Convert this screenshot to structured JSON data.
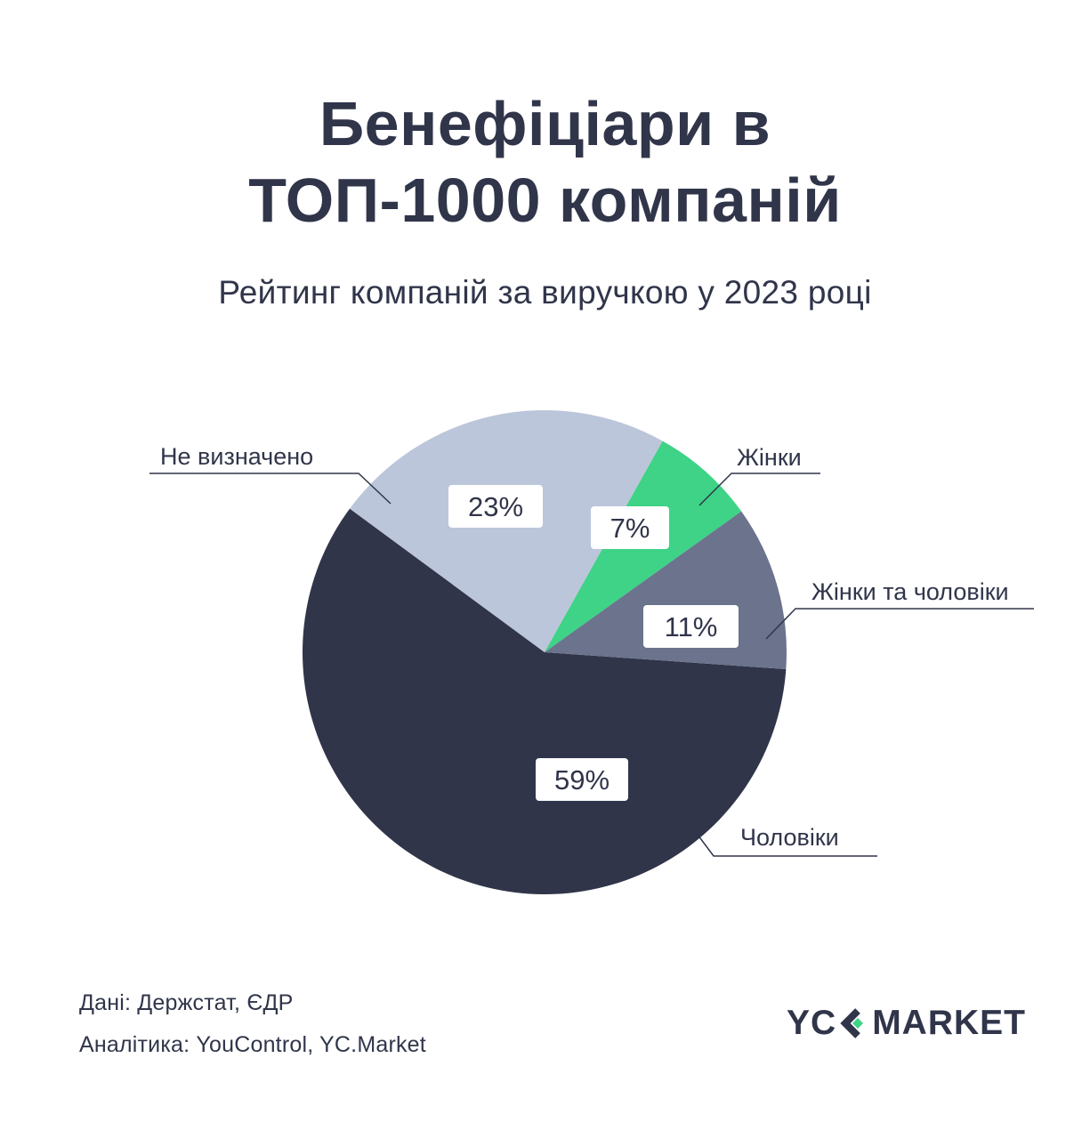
{
  "header": {
    "title_line1": "Бенефіціари в",
    "title_line2": "ТОП-1000 компаній",
    "subtitle": "Рейтинг компаній за виручкою у 2023 році"
  },
  "chart_data": {
    "type": "pie",
    "title": "Бенефіціари в ТОП-1000 компаній",
    "subtitle": "Рейтинг компаній за виручкою у 2023 році",
    "unit": "%",
    "slices": [
      {
        "label": "Чоловіки",
        "value": 59,
        "display": "59%",
        "color": "#30354a"
      },
      {
        "label": "Не визначено",
        "value": 23,
        "display": "23%",
        "color": "#bcc6da"
      },
      {
        "label": "Жінки",
        "value": 7,
        "display": "7%",
        "color": "#3ed386"
      },
      {
        "label": "Жінки та чоловіки",
        "value": 11,
        "display": "11%",
        "color": "#6b738d"
      }
    ]
  },
  "footer": {
    "sources": "Дані: Держстат, ЄДР",
    "analytics": "Аналітика: YouControl, YC.Market"
  },
  "logo": {
    "left": "YC",
    "right": "MARKET",
    "accent_color": "#3ed386"
  },
  "colors": {
    "text": "#30354a",
    "leader_line": "#30354a",
    "label_box": "#ffffff"
  }
}
